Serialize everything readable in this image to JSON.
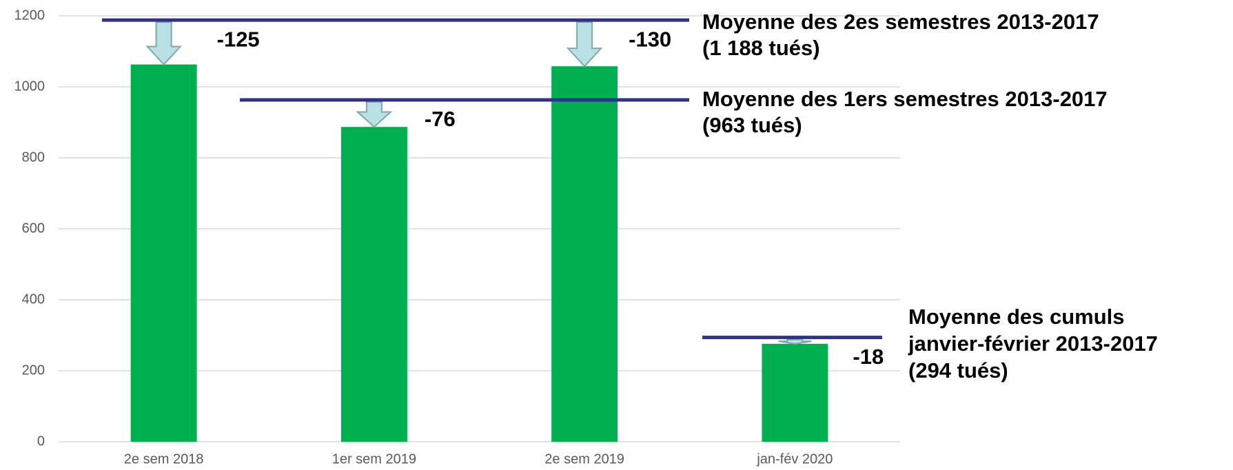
{
  "chart_data": {
    "type": "bar",
    "categories": [
      "2e sem 2018",
      "1er sem 2019",
      "2e sem 2019",
      "jan-fév 2020"
    ],
    "values": [
      1063,
      887,
      1058,
      276
    ],
    "color": "#00b050",
    "ylim": [
      0,
      1200
    ],
    "yticks": [
      0,
      200,
      400,
      600,
      800,
      1000,
      1200
    ],
    "grid": true,
    "reference_lines": [
      {
        "value": 1188,
        "color": "#2e3192",
        "labels": [
          "Moyenne des 2es semestres 2013-2017",
          "(1 188 tués)"
        ]
      },
      {
        "value": 963,
        "color": "#2e3192",
        "labels": [
          "Moyenne des 1ers semestres 2013-2017",
          "(963 tués)"
        ]
      },
      {
        "value": 294,
        "color": "#2e3192",
        "labels": [
          "Moyenne des cumuls",
          "janvier-février 2013-2017",
          "(294 tués)"
        ]
      }
    ],
    "deltas": [
      -125,
      -76,
      -130,
      -18
    ]
  }
}
